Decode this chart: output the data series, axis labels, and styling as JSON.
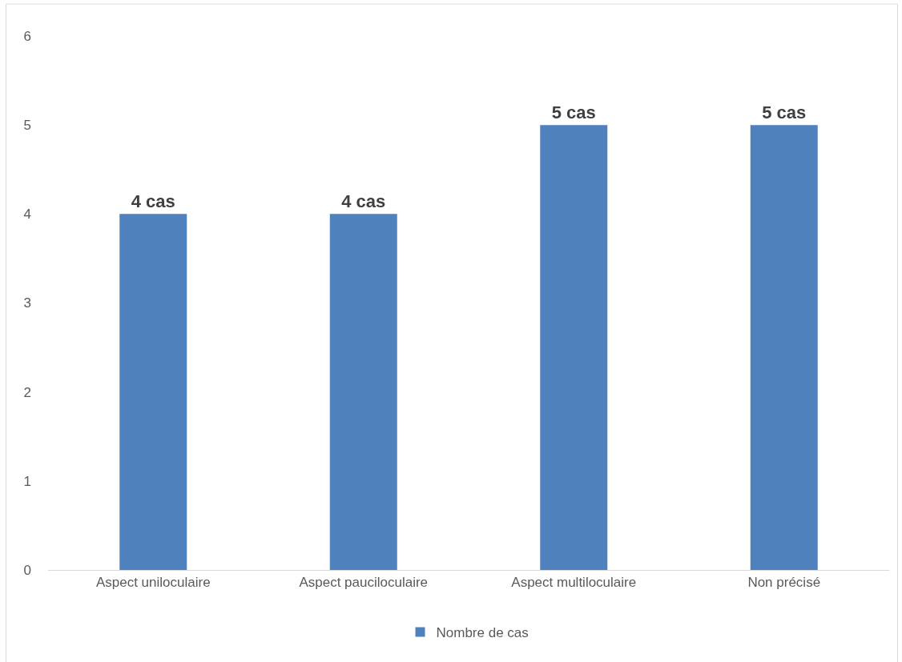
{
  "chart_data": {
    "type": "bar",
    "categories": [
      "Aspect uniloculaire",
      "Aspect pauciloculaire",
      "Aspect multiloculaire",
      "Non précisé"
    ],
    "series": [
      {
        "name": "Nombre de cas",
        "color": "#4f81bd",
        "values": [
          4,
          4,
          5,
          5
        ],
        "value_labels": [
          "4 cas",
          "4 cas",
          "5 cas",
          "5 cas"
        ]
      }
    ],
    "ylim": [
      0,
      6
    ],
    "yticks": [
      0,
      1,
      2,
      3,
      4,
      5,
      6
    ],
    "grid": false,
    "legend": "bottom"
  }
}
